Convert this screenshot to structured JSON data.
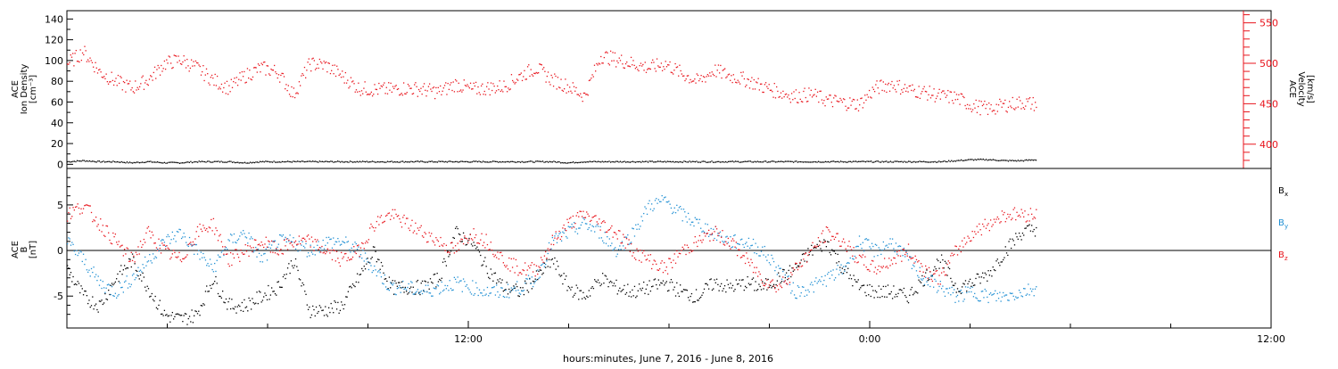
{
  "chart_data": [
    {
      "type": "scatter",
      "title": "",
      "xlabel": "",
      "ylabel_left": [
        "ACE",
        "Ion Density",
        "[cm⁻³]"
      ],
      "ylabel_right": [
        "ACE",
        "Velocity",
        "[km/s]"
      ],
      "ylim_left": [
        -4,
        148
      ],
      "yticks_left": [
        0,
        20,
        40,
        60,
        80,
        100,
        120,
        140
      ],
      "ylim_right": [
        370,
        565
      ],
      "yticks_right": [
        400,
        450,
        500,
        550
      ],
      "series": [
        {
          "axis": "left",
          "color": "#000000",
          "x": [
            0,
            1,
            2,
            3,
            4,
            5,
            6,
            7,
            8,
            9,
            10,
            11,
            12,
            13,
            14,
            15,
            16,
            17,
            18,
            19,
            20,
            21,
            22,
            23,
            24,
            25,
            26,
            27,
            28,
            29,
            30,
            31,
            32,
            33,
            34,
            35,
            36,
            37,
            38,
            39,
            40,
            41,
            42,
            43,
            44,
            45,
            46,
            47,
            48,
            49,
            50,
            51,
            52,
            53,
            54,
            55,
            56,
            57,
            58,
            59,
            60
          ],
          "values": [
            3,
            4,
            3,
            3,
            2,
            3,
            2,
            2,
            3,
            3,
            3,
            2,
            3,
            3,
            3,
            3,
            3,
            3,
            3,
            3,
            3,
            3,
            3,
            3,
            3,
            3,
            3,
            3,
            3,
            3,
            3,
            2,
            3,
            3,
            3,
            3,
            3,
            3,
            3,
            3,
            3,
            3,
            3,
            3,
            3,
            3,
            3,
            3,
            3,
            3,
            3,
            3,
            3,
            3,
            3,
            4,
            5,
            5,
            4,
            4,
            5
          ]
        },
        {
          "axis": "right",
          "color": "#e8141c",
          "x": [
            0,
            1,
            2,
            3,
            4,
            5,
            6,
            7,
            8,
            9,
            10,
            11,
            12,
            13,
            14,
            15,
            16,
            17,
            18,
            19,
            20,
            21,
            22,
            23,
            24,
            25,
            26,
            27,
            28,
            29,
            30,
            31,
            32,
            33,
            34,
            35,
            36,
            37,
            38,
            39,
            40,
            41,
            42,
            43,
            44,
            45,
            46,
            47,
            48,
            49,
            50,
            51,
            52,
            53,
            54,
            55,
            56,
            57,
            58,
            59,
            60
          ],
          "values": [
            500,
            515,
            490,
            478,
            470,
            480,
            500,
            505,
            495,
            480,
            470,
            485,
            495,
            490,
            462,
            500,
            498,
            485,
            470,
            468,
            468,
            470,
            468,
            465,
            475,
            468,
            470,
            472,
            485,
            495,
            480,
            472,
            460,
            510,
            505,
            500,
            495,
            500,
            488,
            478,
            492,
            485,
            480,
            472,
            465,
            460,
            462,
            455,
            452,
            450,
            470,
            475,
            468,
            465,
            460,
            458,
            448,
            444,
            449,
            452,
            450
          ]
        }
      ]
    },
    {
      "type": "scatter",
      "title": "",
      "ylabel": [
        "ACE",
        "B",
        "[nT]"
      ],
      "ylim": [
        -8.5,
        9
      ],
      "yticks": [
        -5,
        0,
        5
      ],
      "zero_line": true,
      "legend_position": "right",
      "xlabel": "hours:minutes, June  7, 2016 - June  8, 2016",
      "x_tick_labels": [
        "12:00",
        "0:00",
        "12:00"
      ],
      "x_tick_hours": [
        12,
        24,
        36
      ],
      "x_range_hours": [
        0,
        36
      ],
      "series": [
        {
          "name": "B",
          "subscript": "x",
          "color": "#000000",
          "x": [
            0,
            1,
            2,
            3,
            4,
            5,
            6,
            7,
            8,
            9,
            10,
            11,
            12,
            13,
            14,
            15,
            16,
            17,
            18,
            19,
            20,
            21,
            22,
            23,
            24,
            25,
            26,
            27,
            28,
            29,
            30,
            31,
            32,
            33,
            34,
            35,
            36,
            37,
            38,
            39,
            40,
            41,
            42,
            43,
            44,
            45,
            46,
            47,
            48,
            49,
            50,
            51,
            52,
            53,
            54,
            55,
            56,
            57,
            58,
            59,
            60
          ],
          "values": [
            -2,
            -5,
            -6,
            -3,
            -1,
            -4,
            -7,
            -7.5,
            -7,
            -3,
            -6,
            -6,
            -5,
            -4,
            -1,
            -6.5,
            -6.5,
            -6,
            -3,
            0,
            -4,
            -4,
            -4,
            -3,
            2,
            1,
            -2,
            -4,
            -4.5,
            -3,
            -1,
            -4,
            -5,
            -3,
            -4,
            -4.5,
            -4,
            -3.5,
            -4.5,
            -5,
            -3.5,
            -4,
            -3.5,
            -4,
            -3,
            -2,
            0,
            1,
            -2,
            -4,
            -4.5,
            -4.5,
            -5,
            -3,
            -1,
            -4,
            -3.5,
            -2.5,
            0,
            2,
            2.5
          ]
        },
        {
          "name": "B",
          "subscript": "y",
          "color": "#1f8fd3",
          "x": [
            0,
            1,
            2,
            3,
            4,
            5,
            6,
            7,
            8,
            9,
            10,
            11,
            12,
            13,
            14,
            15,
            16,
            17,
            18,
            19,
            20,
            21,
            22,
            23,
            24,
            25,
            26,
            27,
            28,
            29,
            30,
            31,
            32,
            33,
            34,
            35,
            36,
            37,
            38,
            39,
            40,
            41,
            42,
            43,
            44,
            45,
            46,
            47,
            48,
            49,
            50,
            51,
            52,
            53,
            54,
            55,
            56,
            57,
            58,
            59,
            60
          ],
          "values": [
            1,
            -1,
            -3.5,
            -4.5,
            -3,
            -1,
            1,
            2,
            0,
            -2,
            1,
            2,
            -1,
            1,
            1,
            0,
            1,
            1,
            0,
            -2,
            -4,
            -4,
            -4.5,
            -4,
            -3.5,
            -4,
            -4.5,
            -4.5,
            -4,
            -3,
            1,
            2,
            3,
            2,
            0,
            2,
            5,
            5.5,
            4,
            3,
            2,
            1,
            1,
            0,
            -2,
            -4.5,
            -4,
            -3,
            -2,
            1,
            0,
            1,
            -1,
            -3,
            -4,
            -5,
            -4.5,
            -5,
            -5,
            -4.5,
            -4
          ]
        },
        {
          "name": "B",
          "subscript": "z",
          "color": "#e8141c",
          "x": [
            0,
            1,
            2,
            3,
            4,
            5,
            6,
            7,
            8,
            9,
            10,
            11,
            12,
            13,
            14,
            15,
            16,
            17,
            18,
            19,
            20,
            21,
            22,
            23,
            24,
            25,
            26,
            27,
            28,
            29,
            30,
            31,
            32,
            33,
            34,
            35,
            36,
            37,
            38,
            39,
            40,
            41,
            42,
            43,
            44,
            45,
            46,
            47,
            48,
            49,
            50,
            51,
            52,
            53,
            54,
            55,
            56,
            57,
            58,
            59,
            60
          ],
          "values": [
            4,
            5,
            3,
            1,
            -1,
            2,
            0,
            -1,
            2,
            3,
            -1,
            0,
            1,
            0,
            1,
            1,
            0,
            -1,
            0,
            3,
            4,
            3,
            2,
            1,
            0,
            2,
            1,
            -1,
            -2,
            -2,
            1,
            3,
            4,
            3,
            2,
            0,
            -1,
            -2,
            0,
            1,
            2,
            1,
            -1,
            -3,
            -4,
            -2,
            0,
            2,
            1,
            -1,
            -2,
            -1,
            0,
            -2,
            -3,
            0,
            2,
            3,
            4,
            4,
            4
          ]
        }
      ]
    }
  ]
}
